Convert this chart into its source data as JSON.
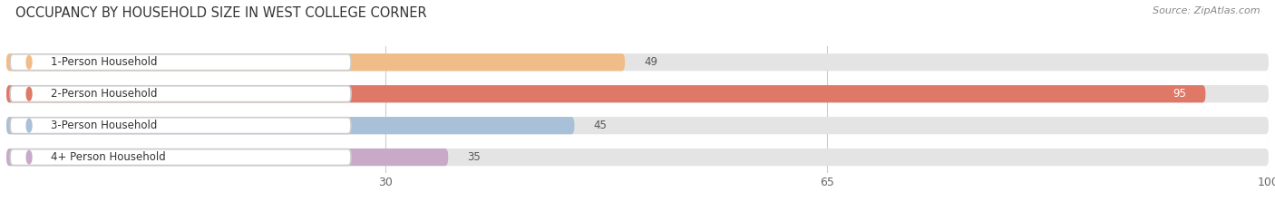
{
  "title": "OCCUPANCY BY HOUSEHOLD SIZE IN WEST COLLEGE CORNER",
  "source": "Source: ZipAtlas.com",
  "categories": [
    "1-Person Household",
    "2-Person Household",
    "3-Person Household",
    "4+ Person Household"
  ],
  "values": [
    49,
    95,
    45,
    35
  ],
  "bar_colors": [
    "#f0bc87",
    "#e07868",
    "#a8c0d8",
    "#c8aac8"
  ],
  "bg_bar_color": "#e4e4e4",
  "xlim": [
    0,
    100
  ],
  "xticks": [
    30,
    65,
    100
  ],
  "background_color": "#ffffff",
  "title_fontsize": 10.5,
  "source_fontsize": 8,
  "label_fontsize": 8.5,
  "value_fontsize": 8.5,
  "tick_fontsize": 9,
  "bar_height": 0.55,
  "bar_gap": 0.12
}
